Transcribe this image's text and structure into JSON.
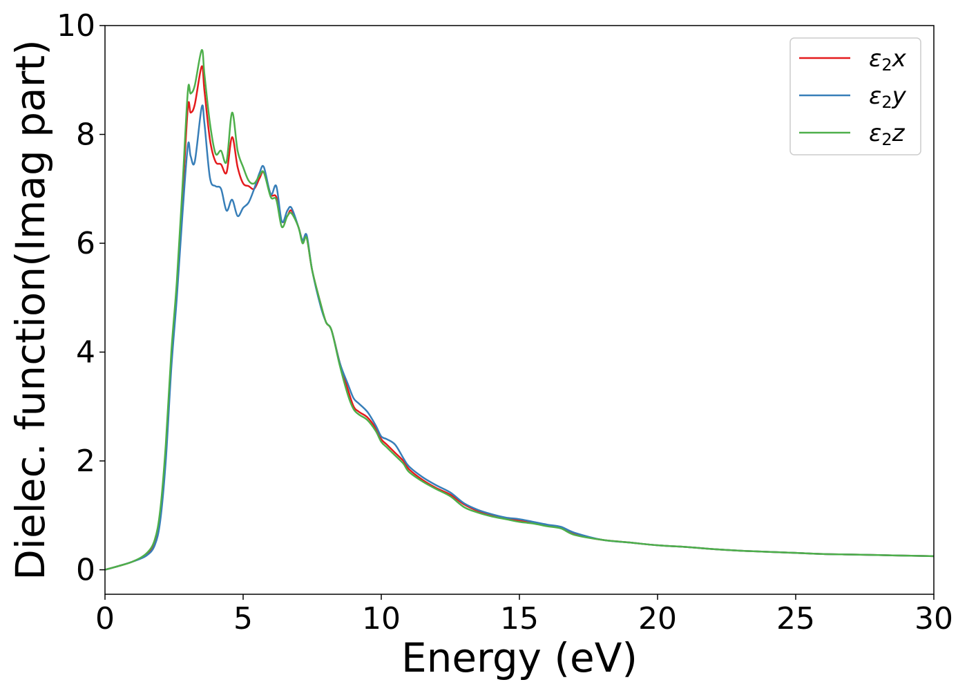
{
  "chart_data": {
    "type": "line",
    "xlabel": "Energy (eV)",
    "ylabel": "Dielec. function(Imag part)",
    "xlim": [
      0,
      30
    ],
    "ylim": [
      -0.45,
      10
    ],
    "xticks": [
      0,
      5,
      10,
      15,
      20,
      25,
      30
    ],
    "yticks": [
      0,
      2,
      4,
      6,
      8,
      10
    ],
    "legend_position": "top-right",
    "grid": false,
    "series": [
      {
        "name": "ε2x",
        "legend": {
          "base": "ε",
          "sub": "2",
          "var": "x"
        },
        "color": "#e41a1c",
        "x": [
          0,
          0.5,
          1,
          1.5,
          1.8,
          2.0,
          2.2,
          2.4,
          2.6,
          2.8,
          3.0,
          3.1,
          3.25,
          3.5,
          3.6,
          3.8,
          4.0,
          4.2,
          4.4,
          4.6,
          4.8,
          5.0,
          5.2,
          5.4,
          5.6,
          5.75,
          6.0,
          6.2,
          6.4,
          6.6,
          6.75,
          7.0,
          7.15,
          7.3,
          7.5,
          7.8,
          8.0,
          8.2,
          8.5,
          8.8,
          9.0,
          9.2,
          9.5,
          9.8,
          10.0,
          10.2,
          10.5,
          10.8,
          11.0,
          11.5,
          12.0,
          12.5,
          13.0,
          13.5,
          14.0,
          14.5,
          15.0,
          15.5,
          16.0,
          16.5,
          17.0,
          18.0,
          19.0,
          20.0,
          21.0,
          22.0,
          23.0,
          24.0,
          25.0,
          26.0,
          27.0,
          28.0,
          29.0,
          30.0
        ],
        "y": [
          0,
          0.07,
          0.15,
          0.28,
          0.5,
          1.0,
          2.2,
          3.9,
          5.2,
          6.8,
          8.5,
          8.4,
          8.55,
          9.25,
          8.8,
          7.9,
          7.5,
          7.45,
          7.3,
          7.95,
          7.4,
          7.1,
          7.05,
          7.0,
          7.2,
          7.3,
          6.9,
          6.85,
          6.4,
          6.5,
          6.6,
          6.3,
          6.05,
          6.1,
          5.5,
          4.9,
          4.55,
          4.4,
          3.8,
          3.3,
          3.0,
          2.9,
          2.8,
          2.6,
          2.4,
          2.3,
          2.15,
          2.0,
          1.85,
          1.65,
          1.5,
          1.38,
          1.2,
          1.08,
          1.0,
          0.95,
          0.9,
          0.87,
          0.82,
          0.77,
          0.65,
          0.55,
          0.5,
          0.45,
          0.42,
          0.38,
          0.35,
          0.33,
          0.31,
          0.29,
          0.28,
          0.27,
          0.26,
          0.25
        ]
      },
      {
        "name": "ε2y",
        "legend": {
          "base": "ε",
          "sub": "2",
          "var": "y"
        },
        "color": "#377eb8",
        "x": [
          0,
          0.5,
          1,
          1.5,
          1.8,
          2.0,
          2.2,
          2.4,
          2.6,
          2.8,
          3.0,
          3.1,
          3.25,
          3.5,
          3.6,
          3.8,
          4.0,
          4.2,
          4.4,
          4.6,
          4.8,
          5.0,
          5.2,
          5.4,
          5.6,
          5.75,
          6.0,
          6.2,
          6.4,
          6.6,
          6.75,
          7.0,
          7.15,
          7.3,
          7.5,
          7.8,
          8.0,
          8.2,
          8.5,
          8.8,
          9.0,
          9.2,
          9.5,
          9.8,
          10.0,
          10.2,
          10.5,
          10.8,
          11.0,
          11.5,
          12.0,
          12.5,
          13.0,
          13.5,
          14.0,
          14.5,
          15.0,
          15.5,
          16.0,
          16.5,
          17.0,
          18.0,
          19.0,
          20.0,
          21.0,
          22.0,
          23.0,
          24.0,
          25.0,
          26.0,
          27.0,
          28.0,
          29.0,
          30.0
        ],
        "y": [
          0,
          0.07,
          0.15,
          0.26,
          0.45,
          0.9,
          2.0,
          3.7,
          5.0,
          6.5,
          7.8,
          7.6,
          7.5,
          8.5,
          8.2,
          7.2,
          7.05,
          7.0,
          6.6,
          6.8,
          6.5,
          6.65,
          6.75,
          7.0,
          7.3,
          7.4,
          6.9,
          7.05,
          6.4,
          6.6,
          6.65,
          6.3,
          6.05,
          6.15,
          5.5,
          4.85,
          4.55,
          4.4,
          3.8,
          3.4,
          3.15,
          3.05,
          2.9,
          2.65,
          2.45,
          2.4,
          2.3,
          2.05,
          1.9,
          1.7,
          1.55,
          1.42,
          1.22,
          1.1,
          1.02,
          0.96,
          0.93,
          0.88,
          0.83,
          0.79,
          0.68,
          0.55,
          0.5,
          0.45,
          0.42,
          0.38,
          0.35,
          0.33,
          0.31,
          0.29,
          0.28,
          0.27,
          0.26,
          0.25
        ]
      },
      {
        "name": "ε2z",
        "legend": {
          "base": "ε",
          "sub": "2",
          "var": "z"
        },
        "color": "#4daf4a",
        "x": [
          0,
          0.5,
          1,
          1.5,
          1.8,
          2.0,
          2.2,
          2.4,
          2.6,
          2.8,
          3.0,
          3.1,
          3.25,
          3.5,
          3.6,
          3.8,
          4.0,
          4.2,
          4.4,
          4.6,
          4.8,
          5.0,
          5.2,
          5.4,
          5.6,
          5.75,
          6.0,
          6.2,
          6.4,
          6.6,
          6.75,
          7.0,
          7.15,
          7.3,
          7.5,
          7.8,
          8.0,
          8.2,
          8.5,
          8.8,
          9.0,
          9.2,
          9.5,
          9.8,
          10.0,
          10.2,
          10.5,
          10.8,
          11.0,
          11.5,
          12.0,
          12.5,
          13.0,
          13.5,
          14.0,
          14.5,
          15.0,
          15.5,
          16.0,
          16.5,
          17.0,
          18.0,
          19.0,
          20.0,
          21.0,
          22.0,
          23.0,
          24.0,
          25.0,
          26.0,
          27.0,
          28.0,
          29.0,
          30.0
        ],
        "y": [
          0,
          0.07,
          0.15,
          0.3,
          0.55,
          1.1,
          2.3,
          4.0,
          5.3,
          7.0,
          8.8,
          8.75,
          8.9,
          9.55,
          9.1,
          8.2,
          7.65,
          7.7,
          7.5,
          8.4,
          7.7,
          7.4,
          7.15,
          7.1,
          7.25,
          7.3,
          6.85,
          6.8,
          6.3,
          6.5,
          6.55,
          6.3,
          6.0,
          6.1,
          5.5,
          4.9,
          4.55,
          4.4,
          3.75,
          3.2,
          2.95,
          2.85,
          2.75,
          2.55,
          2.35,
          2.25,
          2.1,
          1.95,
          1.8,
          1.62,
          1.48,
          1.35,
          1.15,
          1.05,
          0.98,
          0.93,
          0.88,
          0.85,
          0.8,
          0.76,
          0.64,
          0.55,
          0.5,
          0.45,
          0.42,
          0.38,
          0.35,
          0.33,
          0.31,
          0.29,
          0.28,
          0.27,
          0.26,
          0.25
        ]
      }
    ]
  }
}
